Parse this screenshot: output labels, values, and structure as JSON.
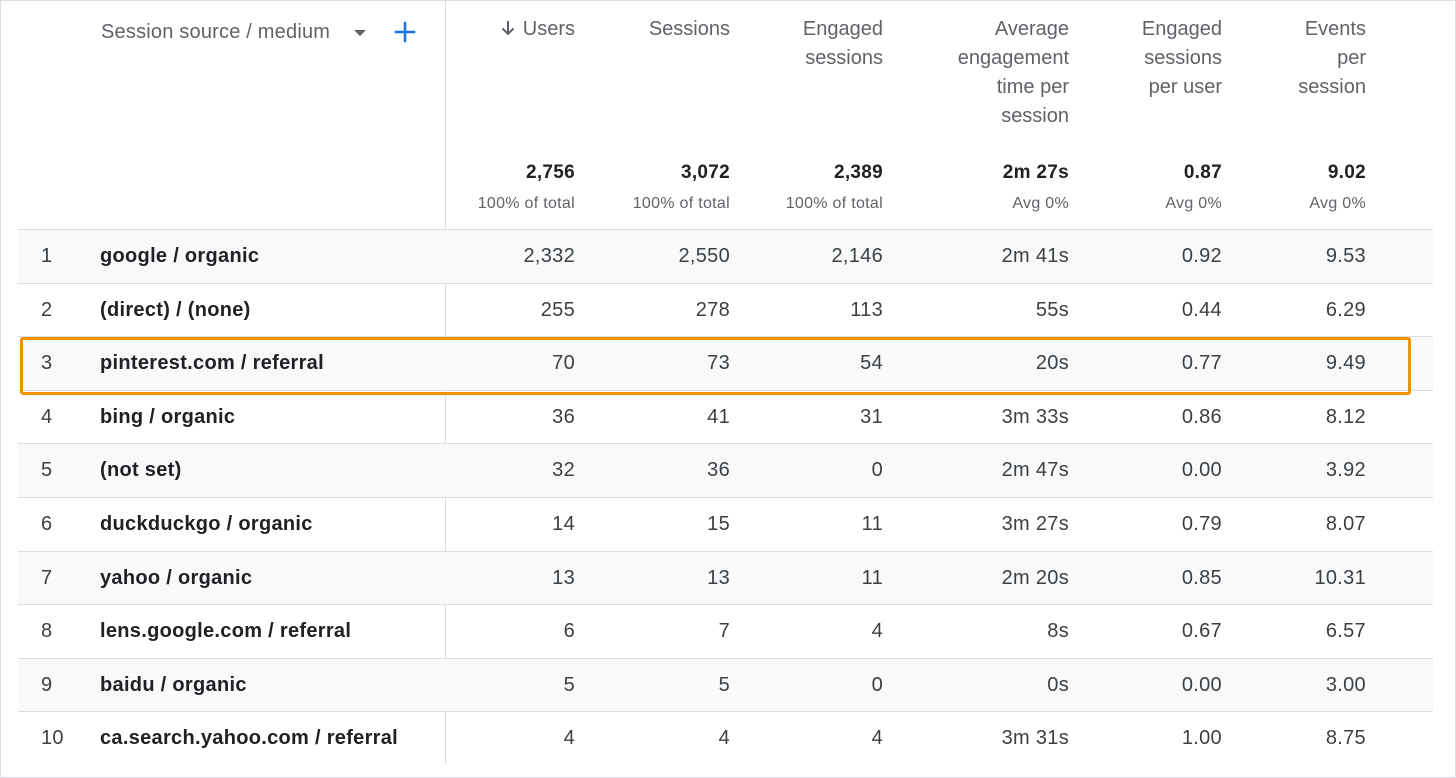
{
  "dimension": {
    "label": "Session source / medium",
    "dropdown_icon": "caret-down-icon",
    "add_icon": "plus-icon"
  },
  "columns": [
    {
      "key": "users",
      "label": "Users",
      "sorted": true,
      "sort_icon": "arrow-down-icon",
      "total": "2,756",
      "sub": "100% of total"
    },
    {
      "key": "sessions",
      "label": "Sessions",
      "total": "3,072",
      "sub": "100% of total"
    },
    {
      "key": "engaged_sessions",
      "label": "Engaged sessions",
      "total": "2,389",
      "sub": "100% of total"
    },
    {
      "key": "avg_engagement_time",
      "label": "Average engagement time per session",
      "total": "2m 27s",
      "sub": "Avg 0%"
    },
    {
      "key": "engaged_sessions_per_user",
      "label": "Engaged sessions per user",
      "total": "0.87",
      "sub": "Avg 0%"
    },
    {
      "key": "events_per_session",
      "label": "Events per session",
      "total": "9.02",
      "sub": "Avg 0%"
    }
  ],
  "rows": [
    {
      "index": "1",
      "dimension": "google / organic",
      "values": [
        "2,332",
        "2,550",
        "2,146",
        "2m 41s",
        "0.92",
        "9.53"
      ]
    },
    {
      "index": "2",
      "dimension": "(direct) / (none)",
      "values": [
        "255",
        "278",
        "113",
        "55s",
        "0.44",
        "6.29"
      ]
    },
    {
      "index": "3",
      "dimension": "pinterest.com / referral",
      "values": [
        "70",
        "73",
        "54",
        "20s",
        "0.77",
        "9.49"
      ]
    },
    {
      "index": "4",
      "dimension": "bing / organic",
      "values": [
        "36",
        "41",
        "31",
        "3m 33s",
        "0.86",
        "8.12"
      ]
    },
    {
      "index": "5",
      "dimension": "(not set)",
      "values": [
        "32",
        "36",
        "0",
        "2m 47s",
        "0.00",
        "3.92"
      ]
    },
    {
      "index": "6",
      "dimension": "duckduckgo / organic",
      "values": [
        "14",
        "15",
        "11",
        "3m 27s",
        "0.79",
        "8.07"
      ]
    },
    {
      "index": "7",
      "dimension": "yahoo / organic",
      "values": [
        "13",
        "13",
        "11",
        "2m 20s",
        "0.85",
        "10.31"
      ]
    },
    {
      "index": "8",
      "dimension": "lens.google.com / referral",
      "values": [
        "6",
        "7",
        "4",
        "8s",
        "0.67",
        "6.57"
      ]
    },
    {
      "index": "9",
      "dimension": "baidu / organic",
      "values": [
        "5",
        "5",
        "0",
        "0s",
        "0.00",
        "3.00"
      ]
    },
    {
      "index": "10",
      "dimension": "ca.search.yahoo.com / referral",
      "values": [
        "4",
        "4",
        "4",
        "3m 31s",
        "1.00",
        "8.75"
      ]
    }
  ],
  "highlighted_row": "3",
  "colors": {
    "highlight": "#f39200",
    "accent": "#1a73e8",
    "row_shade": "#f8f9fa",
    "divider": "#dadce0"
  }
}
